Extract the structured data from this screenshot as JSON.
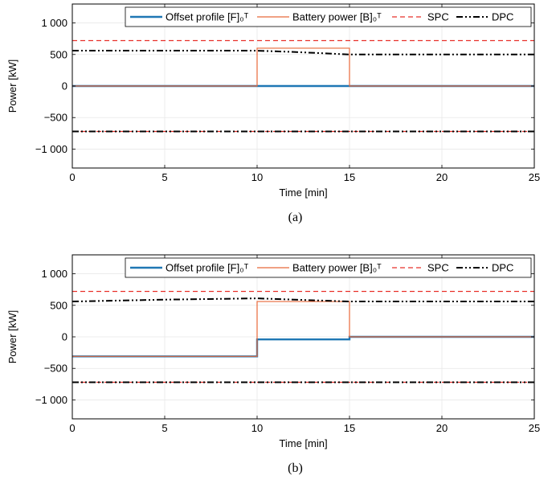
{
  "colors": {
    "offset": "#1f77b4",
    "battery": "#e8693a",
    "spc": "#e8302a",
    "dpc": "#000000"
  },
  "legend": {
    "offset_label": "Offset profile [F]₀ᵀ",
    "battery_label": "Battery power [B]₀ᵀ",
    "spc_label": "SPC",
    "dpc_label": "DPC"
  },
  "chart_data": [
    {
      "type": "line",
      "caption": "(a)",
      "xlabel": "Time [min]",
      "ylabel": "Power [kW]",
      "xlim": [
        0,
        25
      ],
      "ylim": [
        -1300,
        1300
      ],
      "xticks": [
        0,
        5,
        10,
        15,
        20,
        25
      ],
      "xtick_labels": [
        "0",
        "5",
        "10",
        "15",
        "20",
        "25"
      ],
      "yticks": [
        -1000,
        -500,
        0,
        500,
        1000
      ],
      "ytick_labels": [
        "−1 000",
        "−500",
        "0",
        "500",
        "1 000"
      ],
      "grid": true,
      "legend_position": "top-right",
      "series": [
        {
          "name": "Offset profile [F]₀ᵀ",
          "key": "offset",
          "x": [
            0,
            10,
            10,
            15,
            15,
            25
          ],
          "y": [
            0,
            0,
            0,
            0,
            0,
            0
          ]
        },
        {
          "name": "Battery power [B]₀ᵀ",
          "key": "battery",
          "x": [
            0,
            10,
            10,
            15,
            15,
            25
          ],
          "y": [
            0,
            0,
            600,
            600,
            0,
            0
          ]
        },
        {
          "name": "SPC",
          "key": "spc",
          "x": [
            0,
            25
          ],
          "y": [
            720,
            720
          ]
        },
        {
          "name": "SPC",
          "key": "spc",
          "x": [
            0,
            25
          ],
          "y": [
            -720,
            -720
          ]
        },
        {
          "name": "DPC",
          "key": "dpc",
          "x": [
            0,
            10,
            12,
            15,
            25
          ],
          "y": [
            560,
            560,
            540,
            500,
            500
          ]
        },
        {
          "name": "DPC",
          "key": "dpc",
          "x": [
            0,
            25
          ],
          "y": [
            -720,
            -720
          ]
        }
      ]
    },
    {
      "type": "line",
      "caption": "(b)",
      "xlabel": "Time [min]",
      "ylabel": "Power [kW]",
      "xlim": [
        0,
        25
      ],
      "ylim": [
        -1300,
        1300
      ],
      "xticks": [
        0,
        5,
        10,
        15,
        20,
        25
      ],
      "xtick_labels": [
        "0",
        "5",
        "10",
        "15",
        "20",
        "25"
      ],
      "yticks": [
        -1000,
        -500,
        0,
        500,
        1000
      ],
      "ytick_labels": [
        "−1 000",
        "−500",
        "0",
        "500",
        "1 000"
      ],
      "grid": true,
      "legend_position": "top-right",
      "series": [
        {
          "name": "Offset profile [F]₀ᵀ",
          "key": "offset",
          "x": [
            0,
            10,
            10,
            15,
            15,
            25
          ],
          "y": [
            -310,
            -310,
            -40,
            -40,
            0,
            0
          ]
        },
        {
          "name": "Battery power [B]₀ᵀ",
          "key": "battery",
          "x": [
            0,
            10,
            10,
            15,
            15,
            25
          ],
          "y": [
            -310,
            -310,
            560,
            560,
            0,
            0
          ]
        },
        {
          "name": "SPC",
          "key": "spc",
          "x": [
            0,
            25
          ],
          "y": [
            720,
            720
          ]
        },
        {
          "name": "SPC",
          "key": "spc",
          "x": [
            0,
            25
          ],
          "y": [
            -720,
            -720
          ]
        },
        {
          "name": "DPC",
          "key": "dpc",
          "x": [
            0,
            5,
            10,
            13,
            15,
            25
          ],
          "y": [
            560,
            590,
            610,
            580,
            560,
            560
          ]
        },
        {
          "name": "DPC",
          "key": "dpc",
          "x": [
            0,
            25
          ],
          "y": [
            -720,
            -720
          ]
        }
      ]
    }
  ]
}
